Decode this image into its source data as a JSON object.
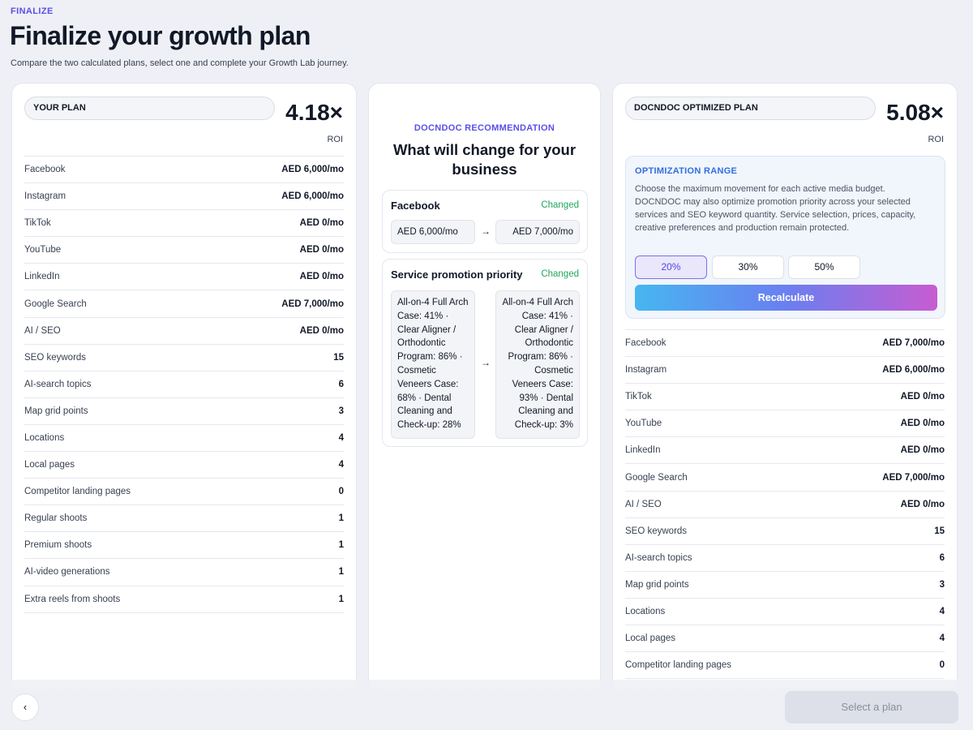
{
  "header": {
    "eyebrow": "FINALIZE",
    "title": "Finalize your growth plan",
    "subtitle": "Compare the two calculated plans, select one and complete your Growth Lab journey."
  },
  "your_plan": {
    "label": "YOUR PLAN",
    "roi_value": "4.18×",
    "roi_label": "ROI",
    "rows": [
      {
        "label": "Facebook",
        "value": "AED 6,000/mo"
      },
      {
        "label": "Instagram",
        "value": "AED 6,000/mo"
      },
      {
        "label": "TikTok",
        "value": "AED 0/mo"
      },
      {
        "label": "YouTube",
        "value": "AED 0/mo"
      },
      {
        "label": "LinkedIn",
        "value": "AED 0/mo"
      },
      {
        "label": "Google Search",
        "value": "AED 7,000/mo"
      },
      {
        "label": "AI / SEO",
        "value": "AED 0/mo"
      },
      {
        "label": "SEO keywords",
        "value": "15"
      },
      {
        "label": "AI-search topics",
        "value": "6"
      },
      {
        "label": "Map grid points",
        "value": "3"
      },
      {
        "label": "Locations",
        "value": "4"
      },
      {
        "label": "Local pages",
        "value": "4"
      },
      {
        "label": "Competitor landing pages",
        "value": "0"
      },
      {
        "label": "Regular shoots",
        "value": "1"
      },
      {
        "label": "Premium shoots",
        "value": "1"
      },
      {
        "label": "AI-video generations",
        "value": "1"
      },
      {
        "label": "Extra reels from shoots",
        "value": "1"
      }
    ]
  },
  "recommendation": {
    "eyebrow": "DOCNDOC RECOMMENDATION",
    "title": "What will change for your business",
    "changes": [
      {
        "name": "Facebook",
        "status": "Changed",
        "from": "AED 6,000/mo",
        "to": "AED 7,000/mo"
      },
      {
        "name": "Service promotion priority",
        "status": "Changed",
        "from": "All-on-4 Full Arch Case: 41% · Clear Aligner / Orthodontic Program: 86% · Cosmetic Veneers Case: 68% · Dental Cleaning and Check-up: 28%",
        "to": "All-on-4 Full Arch Case: 41% · Clear Aligner / Orthodontic Program: 86% · Cosmetic Veneers Case: 93% · Dental Cleaning and Check-up: 3%"
      }
    ],
    "arrow": "→"
  },
  "optimized_plan": {
    "label": "DOCNDOC OPTIMIZED PLAN",
    "roi_value": "5.08×",
    "roi_label": "ROI",
    "optimization": {
      "title": "OPTIMIZATION RANGE",
      "description": "Choose the maximum movement for each active media budget. DOCNDOC may also optimize promotion priority across your selected services and SEO keyword quantity. Service selection, prices, capacity, creative preferences and production remain protected.",
      "options": [
        "20%",
        "30%",
        "50%"
      ],
      "selected": "20%",
      "recalculate_label": "Recalculate"
    },
    "rows": [
      {
        "label": "Facebook",
        "value": "AED 7,000/mo"
      },
      {
        "label": "Instagram",
        "value": "AED 6,000/mo"
      },
      {
        "label": "TikTok",
        "value": "AED 0/mo"
      },
      {
        "label": "YouTube",
        "value": "AED 0/mo"
      },
      {
        "label": "LinkedIn",
        "value": "AED 0/mo"
      },
      {
        "label": "Google Search",
        "value": "AED 7,000/mo"
      },
      {
        "label": "AI / SEO",
        "value": "AED 0/mo"
      },
      {
        "label": "SEO keywords",
        "value": "15"
      },
      {
        "label": "AI-search topics",
        "value": "6"
      },
      {
        "label": "Map grid points",
        "value": "3"
      },
      {
        "label": "Locations",
        "value": "4"
      },
      {
        "label": "Local pages",
        "value": "4"
      },
      {
        "label": "Competitor landing pages",
        "value": "0"
      }
    ]
  },
  "footer": {
    "back_icon": "‹",
    "select_label": "Select a plan"
  },
  "colors": {
    "accent_purple": "#5b4ee8",
    "accent_blue": "#2f6fe0",
    "changed_green": "#22a55b",
    "background": "#eef0f5"
  }
}
